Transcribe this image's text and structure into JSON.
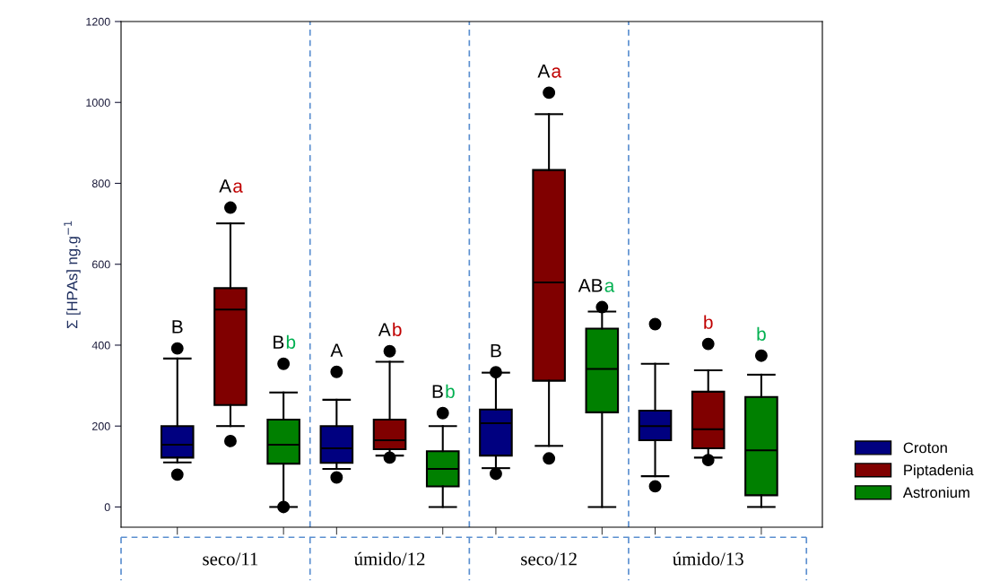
{
  "chart_data": {
    "type": "box",
    "ylabel": "Σ [HPAs] ng.g$^{−1}$",
    "categories": [
      "seco/11",
      "úmido/12",
      "seco/12",
      "úmido/13"
    ],
    "series": [
      {
        "name": "Croton",
        "color": "#000080",
        "boxes": [
          {
            "low": 110,
            "q1": 122,
            "median": 154,
            "q3": 200,
            "high": 367,
            "outliers": [
              392,
              80
            ]
          },
          {
            "low": 94,
            "q1": 109,
            "median": 145,
            "q3": 200,
            "high": 265,
            "outliers": [
              334,
              73
            ]
          },
          {
            "low": 96,
            "q1": 127,
            "median": 207,
            "q3": 241,
            "high": 332,
            "outliers": [
              333,
              82
            ]
          },
          {
            "low": 76,
            "q1": 165,
            "median": 200,
            "q3": 238,
            "high": 354,
            "outliers": [
              452,
              51
            ]
          }
        ]
      },
      {
        "name": "Piptadenia",
        "color": "#800000",
        "boxes": [
          {
            "low": 200,
            "q1": 252,
            "median": 488,
            "q3": 541,
            "high": 701,
            "outliers": [
              740,
              163
            ]
          },
          {
            "low": 127,
            "q1": 143,
            "median": 165,
            "q3": 216,
            "high": 359,
            "outliers": [
              385,
              122
            ]
          },
          {
            "low": 151,
            "q1": 312,
            "median": 555,
            "q3": 833,
            "high": 971,
            "outliers": [
              1024,
              120
            ]
          },
          {
            "low": 122,
            "q1": 145,
            "median": 192,
            "q3": 285,
            "high": 338,
            "outliers": [
              403,
              116
            ]
          }
        ]
      },
      {
        "name": "Astronium",
        "color": "#008000",
        "boxes": [
          {
            "low": 0,
            "q1": 107,
            "median": 154,
            "q3": 216,
            "high": 283,
            "outliers": [
              354,
              0
            ]
          },
          {
            "low": 0,
            "q1": 51,
            "median": 94,
            "q3": 138,
            "high": 200,
            "outliers": [
              232
            ]
          },
          {
            "low": 0,
            "q1": 234,
            "median": 341,
            "q3": 441,
            "high": 483,
            "outliers": [
              494
            ]
          },
          {
            "low": 0,
            "q1": 29,
            "median": 140,
            "q3": 272,
            "high": 327,
            "outliers": [
              374
            ]
          }
        ]
      }
    ],
    "ylim": [
      -50,
      1200
    ],
    "yticks": [
      0,
      200,
      400,
      600,
      800,
      1000,
      1200
    ],
    "annotations": [
      "B",
      "Aa",
      "Bb",
      "A",
      "Ab",
      "Bb",
      "B",
      "Aa",
      "ABa",
      "b",
      "b"
    ],
    "legend": "bottom right",
    "grid": false
  }
}
